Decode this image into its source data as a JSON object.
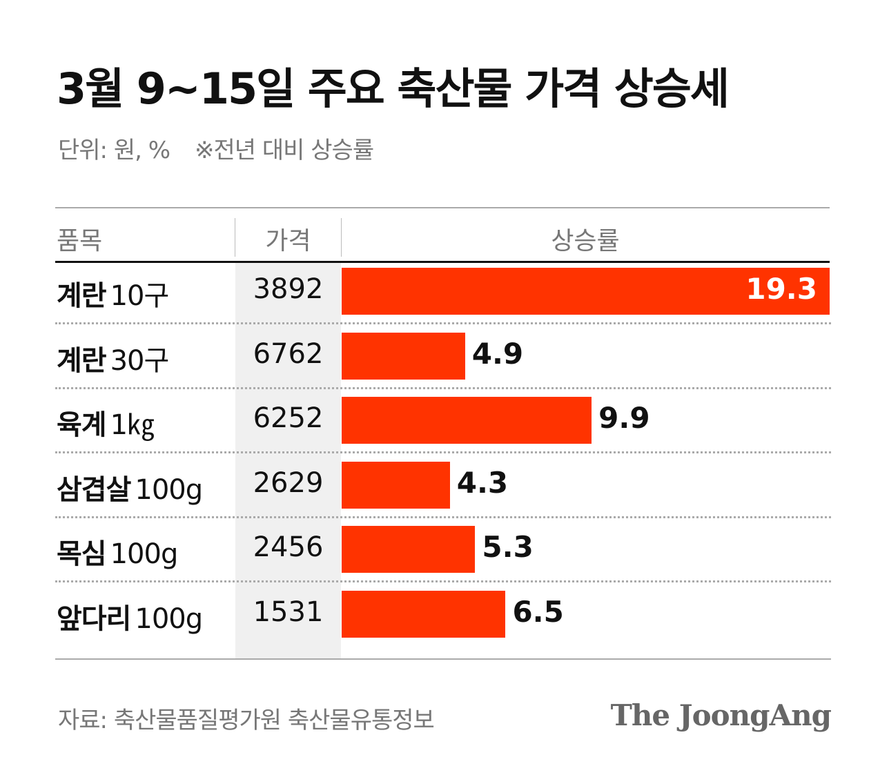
{
  "header": {
    "title": "3월 9~15일 주요 축산물 가격 상승세",
    "unit_label": "단위: 원, %",
    "note": "※전년 대비 상승률"
  },
  "table": {
    "columns": [
      "품목",
      "가격",
      "상승률"
    ]
  },
  "chart_data": {
    "type": "bar",
    "orientation": "horizontal",
    "categories": [
      "계란 10구",
      "계란 30구",
      "육계 1㎏",
      "삼겹살 100g",
      "목심 100g",
      "앞다리 100g"
    ],
    "rows": [
      {
        "name": "계란",
        "unit": "10구",
        "price": "3892",
        "rate": 19.3,
        "rate_label": "19.3"
      },
      {
        "name": "계란",
        "unit": "30구",
        "price": "6762",
        "rate": 4.9,
        "rate_label": "4.9"
      },
      {
        "name": "육계",
        "unit": "1㎏",
        "price": "6252",
        "rate": 9.9,
        "rate_label": "9.9"
      },
      {
        "name": "삼겹살",
        "unit": "100g",
        "price": "2629",
        "rate": 4.3,
        "rate_label": "4.3"
      },
      {
        "name": "목심",
        "unit": "100g",
        "price": "2456",
        "rate": 5.3,
        "rate_label": "5.3"
      },
      {
        "name": "앞다리",
        "unit": "100g",
        "price": "1531",
        "rate": 6.5,
        "rate_label": "6.5"
      }
    ],
    "xlim": [
      0,
      19.3
    ],
    "bar_color": "#ff3300",
    "grid": false
  },
  "footer": {
    "source": "자료: 축산물품질평가원 축산물유통정보",
    "logo": "The JoongAng"
  }
}
